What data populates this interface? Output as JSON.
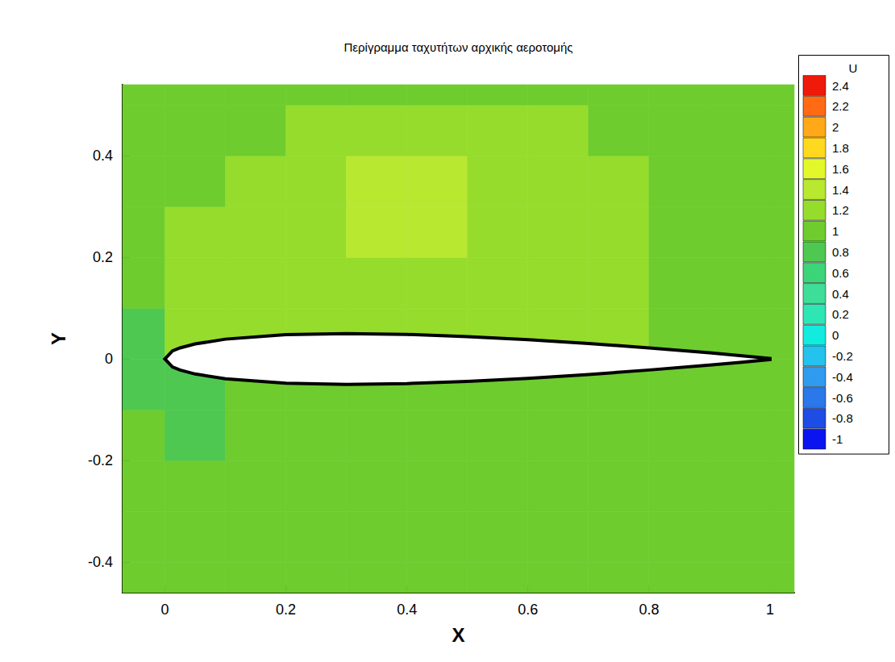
{
  "chart_data": {
    "type": "contour",
    "title": "Περίγραμμα ταχυτήτων αρχικής αεροτομής",
    "x_label": "X",
    "y_label": "Y",
    "xlim": [
      -0.07,
      1.04
    ],
    "ylim": [
      -0.46,
      0.54
    ],
    "xticks": [
      0,
      0.2,
      0.4,
      0.6,
      0.8,
      1
    ],
    "yticks": [
      -0.4,
      -0.2,
      0,
      0.2,
      0.4
    ],
    "grid": false,
    "field": {
      "name": "U",
      "x": [
        -0.05,
        0.05,
        0.15,
        0.25,
        0.35,
        0.45,
        0.55,
        0.65,
        0.75,
        0.85,
        0.95,
        1.05
      ],
      "y": [
        -0.45,
        -0.35,
        -0.25,
        -0.15,
        -0.05,
        0.05,
        0.15,
        0.25,
        0.35,
        0.45,
        0.55
      ],
      "values": [
        [
          1.05,
          1.05,
          1.05,
          1.05,
          1.05,
          1.05,
          1.05,
          1.05,
          1.05,
          1.05,
          1.05,
          1.05
        ],
        [
          1.0,
          1.0,
          1.0,
          1.05,
          1.05,
          1.05,
          1.05,
          1.05,
          1.05,
          1.05,
          1.05,
          1.05
        ],
        [
          0.95,
          0.9,
          0.95,
          1.0,
          1.05,
          1.05,
          1.05,
          1.05,
          1.05,
          1.05,
          1.05,
          1.05
        ],
        [
          0.9,
          0.85,
          0.9,
          0.95,
          1.0,
          1.05,
          1.05,
          1.05,
          1.05,
          1.05,
          1.05,
          1.05
        ],
        [
          0.8,
          0.85,
          0.9,
          0.95,
          1.0,
          1.0,
          1.0,
          1.0,
          1.0,
          1.0,
          0.95,
          1.0
        ],
        [
          0.75,
          1.2,
          1.2,
          1.2,
          1.2,
          1.15,
          1.15,
          1.1,
          1.1,
          1.05,
          1.0,
          1.0
        ],
        [
          0.95,
          1.15,
          1.2,
          1.25,
          1.25,
          1.2,
          1.15,
          1.1,
          1.1,
          1.05,
          1.05,
          1.05
        ],
        [
          1.0,
          1.1,
          1.15,
          1.25,
          1.35,
          1.3,
          1.2,
          1.15,
          1.1,
          1.05,
          1.05,
          1.05
        ],
        [
          1.05,
          1.05,
          1.1,
          1.2,
          1.3,
          1.3,
          1.2,
          1.15,
          1.1,
          1.05,
          1.05,
          1.05
        ],
        [
          1.05,
          1.05,
          1.05,
          1.1,
          1.15,
          1.15,
          1.1,
          1.1,
          1.05,
          1.05,
          1.05,
          1.05
        ],
        [
          1.05,
          1.05,
          1.05,
          1.05,
          1.05,
          1.05,
          1.05,
          1.05,
          1.05,
          1.05,
          1.05,
          1.05
        ]
      ]
    },
    "colorbar": {
      "title": "U",
      "levels": [
        -1,
        -0.8,
        -0.6,
        -0.4,
        -0.2,
        0,
        0.2,
        0.4,
        0.6,
        0.8,
        1,
        1.2,
        1.4,
        1.6,
        1.8,
        2,
        2.2,
        2.4
      ],
      "colors": [
        "#0a14f0",
        "#1e4de6",
        "#2a78ea",
        "#2f9bee",
        "#26c2ee",
        "#12ecdf",
        "#2ee6b4",
        "#3ede98",
        "#3cd478",
        "#4ec850",
        "#6ecc2e",
        "#96dc2c",
        "#b8e830",
        "#e2f82a",
        "#ffd820",
        "#ffa818",
        "#ff6a12",
        "#f01a0a"
      ]
    },
    "airfoil": {
      "x": [
        0,
        0.0125,
        0.025,
        0.05,
        0.1,
        0.2,
        0.3,
        0.4,
        0.5,
        0.6,
        0.7,
        0.8,
        0.9,
        0.95,
        1
      ],
      "upper": [
        0,
        0.0158,
        0.0218,
        0.0296,
        0.039,
        0.0478,
        0.05,
        0.0484,
        0.0441,
        0.0381,
        0.0305,
        0.0217,
        0.0121,
        0.0067,
        0.001
      ],
      "lower": [
        0,
        -0.0158,
        -0.0218,
        -0.0296,
        -0.039,
        -0.0478,
        -0.05,
        -0.0484,
        -0.0441,
        -0.0381,
        -0.0305,
        -0.0217,
        -0.0121,
        -0.0067,
        -0.001
      ]
    }
  }
}
